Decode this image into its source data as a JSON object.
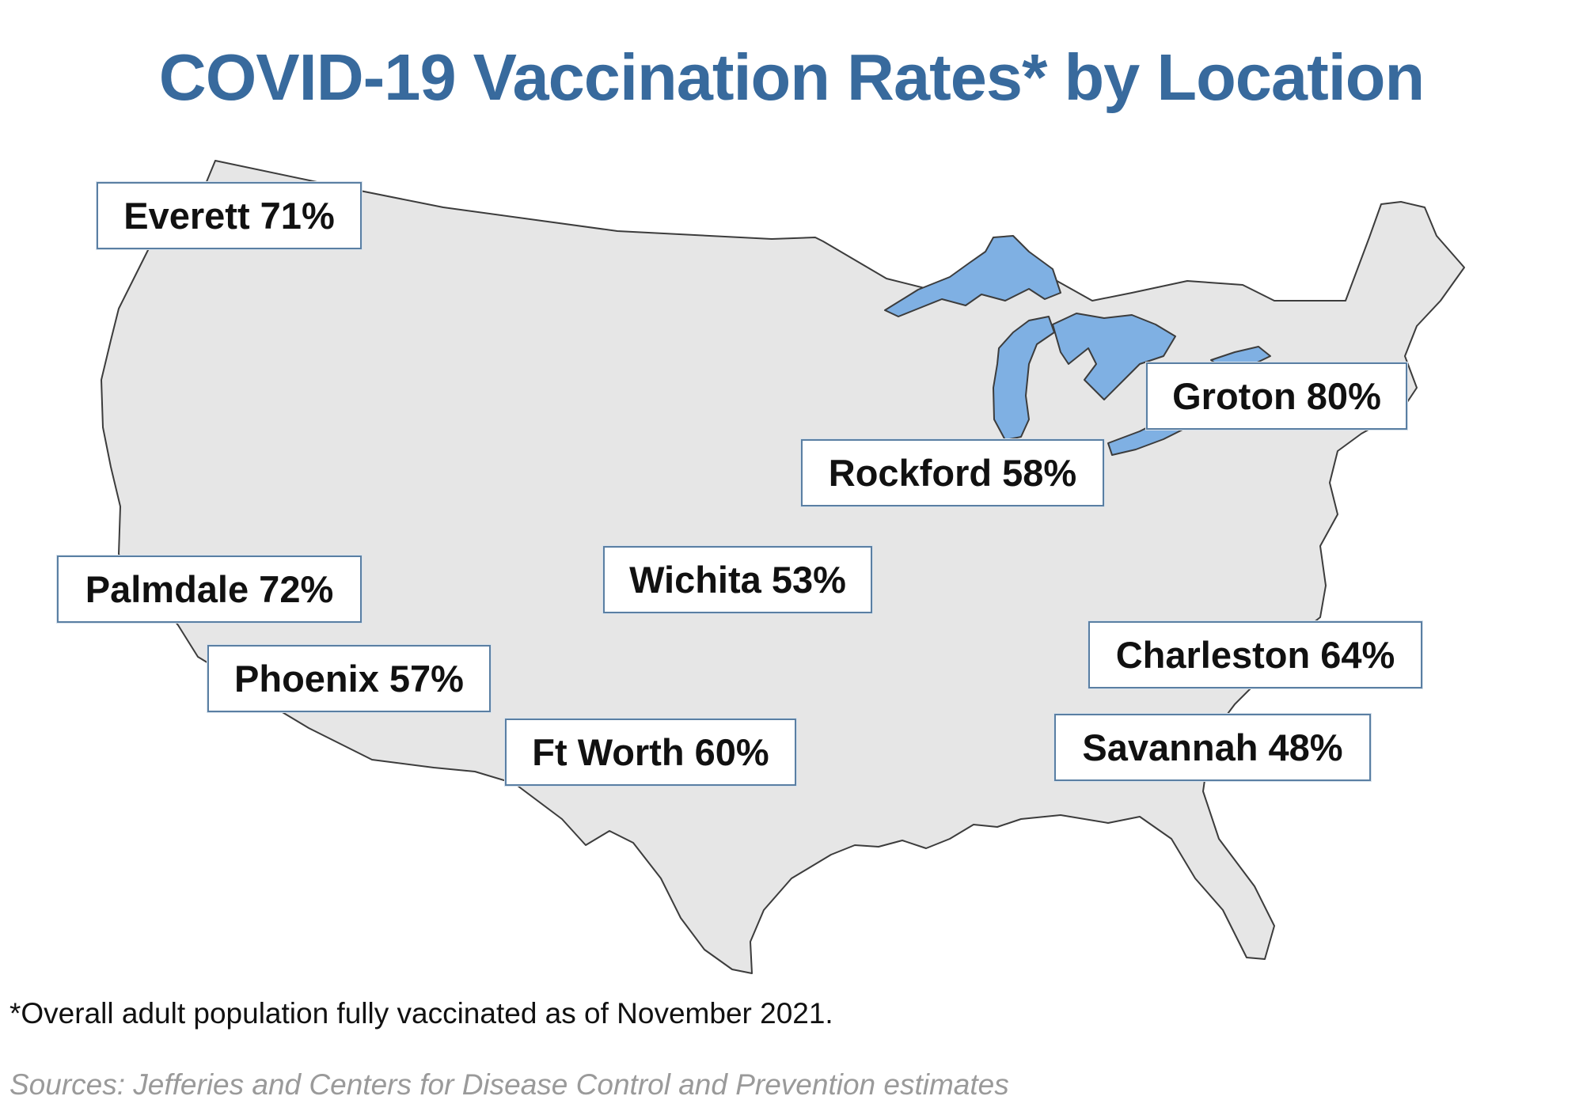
{
  "title": "COVID-19 Vaccination Rates* by Location",
  "map": {
    "region": "us-map",
    "land_color": "#e6e6e6",
    "lake_color": "#7fb0e3",
    "border_color": "#3c3c3c",
    "locations": [
      {
        "label": "Everett 71%"
      },
      {
        "label": "Palmdale 72%"
      },
      {
        "label": "Phoenix 57%"
      },
      {
        "label": "Wichita 53%"
      },
      {
        "label": "Ft Worth 60%"
      },
      {
        "label": "Rockford 58%"
      },
      {
        "label": "Groton 80%"
      },
      {
        "label": "Charleston 64%"
      },
      {
        "label": "Savannah 48%"
      }
    ]
  },
  "footnote": "*Overall adult population fully vaccinated as of November 2021.",
  "source": "Sources: Jefferies and Centers for Disease Control and Prevention estimates",
  "colors": {
    "title": "#386a9d",
    "callout_border": "#5a7fa3",
    "source_text": "#9a9a9a"
  }
}
